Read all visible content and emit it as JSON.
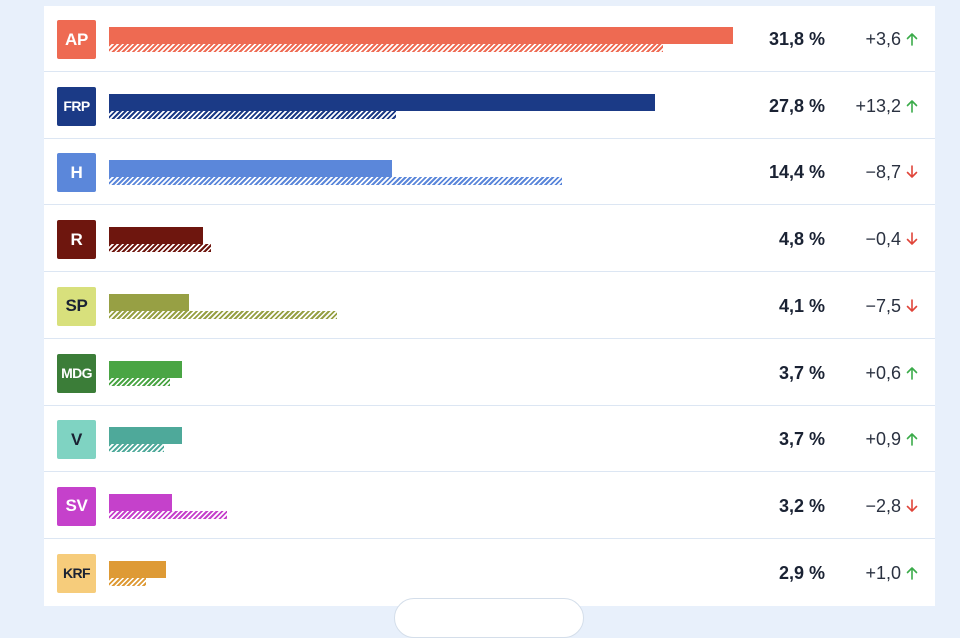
{
  "chart_data": {
    "type": "bar",
    "orientation": "horizontal",
    "categories": [
      "AP",
      "FRP",
      "H",
      "R",
      "SP",
      "MDG",
      "V",
      "SV",
      "KRF"
    ],
    "series": [
      {
        "values": [
          31.8,
          27.8,
          14.4,
          4.8,
          4.1,
          3.7,
          3.7,
          3.2,
          2.9
        ]
      },
      {
        "values": [
          28.2,
          14.6,
          23.1,
          5.2,
          11.6,
          3.1,
          2.8,
          6.0,
          1.9
        ]
      }
    ],
    "labels": [
      "31,8 %",
      "27,8 %",
      "14,4 %",
      "4,8 %",
      "4,1 %",
      "3,7 %",
      "3,7 %",
      "3,2 %",
      "2,9 %"
    ],
    "changes": [
      "+3,6",
      "+13,2",
      "−8,7",
      "−0,4",
      "−7,5",
      "+0,6",
      "+0,9",
      "−2,8",
      "+1,0"
    ],
    "directions": [
      "up",
      "up",
      "down",
      "down",
      "down",
      "up",
      "up",
      "down",
      "up"
    ],
    "colors": [
      "#ee6a52",
      "#1b3a86",
      "#5b87da",
      "#6e160e",
      "#97a044",
      "#4aa544",
      "#4ea99a",
      "#c541cb",
      "#de9a35"
    ],
    "badge_colors": [
      "#ee6a52",
      "#1b3a86",
      "#5b87da",
      "#6e160e",
      "#d8e07c",
      "#3b7d38",
      "#7fd3c2",
      "#c541cb",
      "#f6cc7b"
    ],
    "badge_text_colors": [
      "#ffffff",
      "#ffffff",
      "#ffffff",
      "#ffffff",
      "#1a2233",
      "#ffffff",
      "#1a2233",
      "#ffffff",
      "#1a2233"
    ],
    "up_color": "#3bab4a",
    "down_color": "#e0453a",
    "xlim": [
      0,
      32.6
    ]
  }
}
